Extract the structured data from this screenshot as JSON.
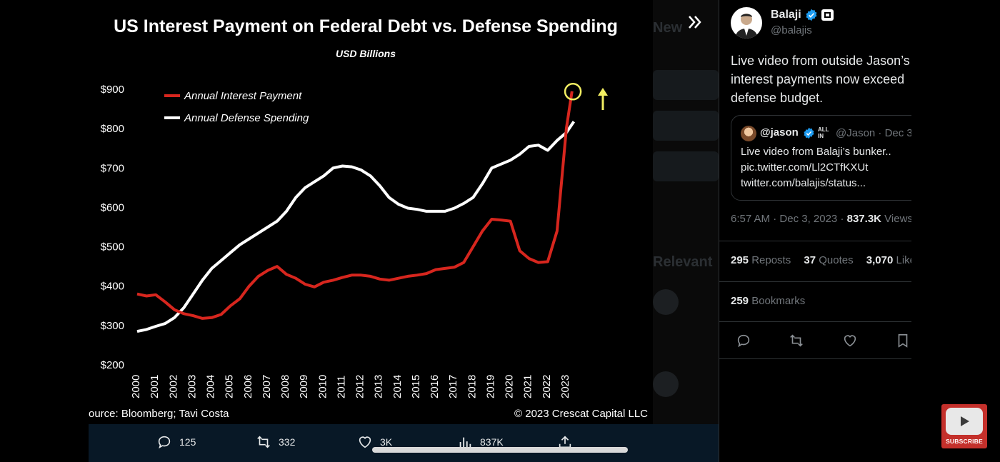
{
  "chart_data": {
    "type": "line",
    "title": "US Interest Payment on Federal Debt vs. Defense Spending",
    "subtitle": "USD Billions",
    "ylim": [
      200,
      900
    ],
    "yticks": [
      200,
      300,
      400,
      500,
      600,
      700,
      800,
      900
    ],
    "ytick_labels": [
      "$200",
      "$300",
      "$400",
      "$500",
      "$600",
      "$700",
      "$800",
      "$900"
    ],
    "xlim": [
      2000,
      2023.5
    ],
    "xticks": [
      "2000",
      "2001",
      "2002",
      "2003",
      "2004",
      "2005",
      "2006",
      "2007",
      "2008",
      "2009",
      "2010",
      "2011",
      "2012",
      "2013",
      "2014",
      "2015",
      "2016",
      "2017",
      "2018",
      "2019",
      "2020",
      "2021",
      "2022",
      "2023"
    ],
    "grid": false,
    "legend_position": "top-left",
    "series": [
      {
        "name": "Annual Interest Payment",
        "color": "#d7261e",
        "x": [
          2000,
          2000.5,
          2001,
          2001.5,
          2002,
          2002.5,
          2003,
          2003.5,
          2004,
          2004.5,
          2005,
          2005.5,
          2006,
          2006.5,
          2007,
          2007.5,
          2008,
          2008.5,
          2009,
          2009.5,
          2010,
          2010.5,
          2011,
          2011.5,
          2012,
          2012.5,
          2013,
          2013.5,
          2014,
          2014.5,
          2015,
          2015.5,
          2016,
          2016.5,
          2017,
          2017.5,
          2018,
          2018.5,
          2019,
          2019.5,
          2020,
          2020.5,
          2021,
          2021.5,
          2022,
          2022.5,
          2023,
          2023.3
        ],
        "values": [
          380,
          375,
          378,
          360,
          340,
          330,
          325,
          318,
          320,
          328,
          350,
          368,
          400,
          425,
          440,
          450,
          430,
          420,
          405,
          398,
          410,
          415,
          422,
          428,
          428,
          425,
          418,
          415,
          420,
          425,
          428,
          432,
          442,
          445,
          448,
          460,
          500,
          540,
          570,
          568,
          565,
          490,
          470,
          460,
          462,
          540,
          800,
          895
        ]
      },
      {
        "name": "Annual Defense Spending",
        "color": "#ffffff",
        "x": [
          2000,
          2000.5,
          2001,
          2001.5,
          2002,
          2002.5,
          2003,
          2003.5,
          2004,
          2004.5,
          2005,
          2005.5,
          2006,
          2006.5,
          2007,
          2007.5,
          2008,
          2008.5,
          2009,
          2009.5,
          2010,
          2010.5,
          2011,
          2011.5,
          2012,
          2012.5,
          2013,
          2013.5,
          2014,
          2014.5,
          2015,
          2015.5,
          2016,
          2016.5,
          2017,
          2017.5,
          2018,
          2018.5,
          2019,
          2019.5,
          2020,
          2020.5,
          2021,
          2021.5,
          2022,
          2022.5,
          2023,
          2023.4
        ],
        "values": [
          285,
          290,
          298,
          305,
          320,
          345,
          380,
          415,
          445,
          465,
          485,
          505,
          520,
          535,
          550,
          565,
          590,
          625,
          650,
          665,
          680,
          700,
          705,
          703,
          695,
          680,
          655,
          625,
          608,
          598,
          595,
          590,
          590,
          590,
          598,
          610,
          625,
          660,
          700,
          710,
          720,
          735,
          755,
          758,
          745,
          770,
          790,
          818
        ]
      }
    ],
    "annotations": [
      {
        "type": "circle",
        "x": 2023.35,
        "y": 894,
        "color": "#f2ee62"
      },
      {
        "type": "arrow-up",
        "color": "#f2ee62"
      }
    ],
    "source": "ource: Bloomberg; Tavi Costa",
    "copyright": "© 2023 Crescat Capital LLC"
  },
  "media_actions": {
    "replies": "125",
    "reposts": "332",
    "likes": "3K",
    "views": "837K"
  },
  "tweet": {
    "author_name": "Balaji",
    "author_handle": "@balajis",
    "text": "Live video from outside Jason’s\ninterest payments now exceed\ndefense budget.",
    "quote": {
      "name": "@jason",
      "badge_line1": "ALL",
      "badge_line2": "IN",
      "handle_date": "@Jason · Dec 3",
      "text": "Live video from Balaji’s bunker..\npic.twitter.com/Ll2CTfKXUt\ntwitter.com/balajis/status..."
    },
    "time": "6:57 AM",
    "sep": " · ",
    "date": "Dec 3, 2023",
    "views_count": "837.3K",
    "views_label": " Views",
    "reposts_count": "295",
    "reposts_label": " Reposts",
    "quotes_count": "37",
    "quotes_label": " Quotes",
    "likes_count": "3,070",
    "likes_label": " Likes",
    "bookmarks_count": "259",
    "bookmarks_label": " Bookmarks"
  },
  "background_ghost": {
    "heading_1": "New",
    "heading_2": "Relevant"
  },
  "subscribe_label": "SUBSCRIBE",
  "colors": {
    "verified": "#1d9bf0",
    "interest": "#d7261e",
    "defense": "#ffffff",
    "highlight": "#f2ee62",
    "youtube_red": "#c4302b"
  }
}
